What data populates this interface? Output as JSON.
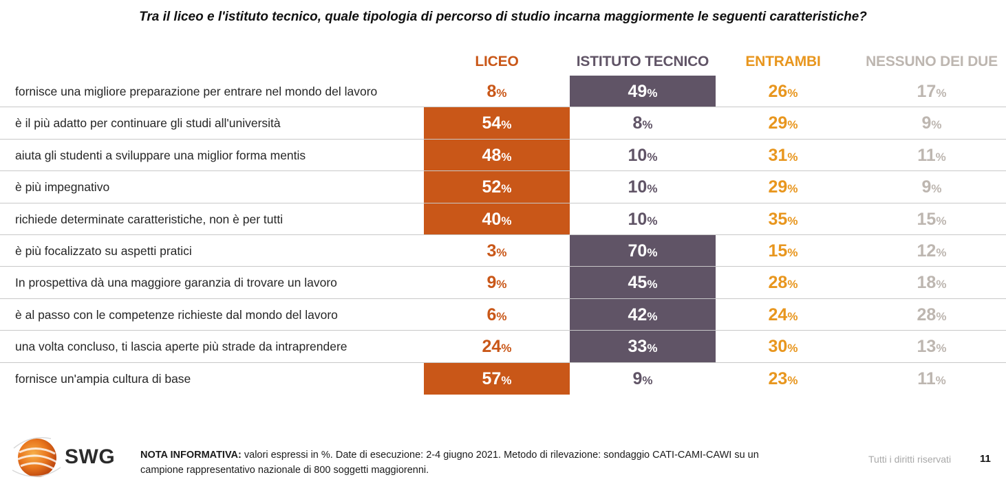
{
  "title": "Tra il liceo e l'istituto tecnico, quale tipologia di percorso di studio incarna maggiormente le seguenti caratteristiche?",
  "colors": {
    "liceo": "#c95718",
    "istituto": "#605466",
    "entrambi": "#e8961e",
    "nessuno": "#bdb6b0"
  },
  "chart_data": {
    "type": "table",
    "title": "Tra il liceo e l'istituto tecnico, quale tipologia di percorso di studio incarna maggiormente le seguenti caratteristiche?",
    "unit": "%",
    "columns": [
      "LICEO",
      "ISTITUTO TECNICO",
      "ENTRAMBI",
      "NESSUNO DEI DUE"
    ],
    "rows": [
      {
        "label": "fornisce una migliore preparazione per entrare nel mondo del lavoro",
        "values": [
          8,
          49,
          26,
          17
        ],
        "highlight": 1
      },
      {
        "label": "è il più adatto per continuare gli studi all'università",
        "values": [
          54,
          8,
          29,
          9
        ],
        "highlight": 0
      },
      {
        "label": "aiuta gli studenti a sviluppare una miglior forma mentis",
        "values": [
          48,
          10,
          31,
          11
        ],
        "highlight": 0
      },
      {
        "label": "è più impegnativo",
        "values": [
          52,
          10,
          29,
          9
        ],
        "highlight": 0
      },
      {
        "label": "richiede determinate caratteristiche, non è per tutti",
        "values": [
          40,
          10,
          35,
          15
        ],
        "highlight": 0
      },
      {
        "label": "è più focalizzato su aspetti pratici",
        "values": [
          3,
          70,
          15,
          12
        ],
        "highlight": 1
      },
      {
        "label": "In prospettiva dà una maggiore garanzia di trovare un lavoro",
        "values": [
          9,
          45,
          28,
          18
        ],
        "highlight": 1
      },
      {
        "label": "è al passo con le competenze richieste dal mondo del lavoro",
        "values": [
          6,
          42,
          24,
          28
        ],
        "highlight": 1
      },
      {
        "label": "una volta concluso, ti lascia aperte più strade da intraprendere",
        "values": [
          24,
          33,
          30,
          13
        ],
        "highlight": 1
      },
      {
        "label": "fornisce un'ampia cultura di base",
        "values": [
          57,
          9,
          23,
          11
        ],
        "highlight": 0
      }
    ]
  },
  "footer": {
    "note_label": "NOTA INFORMATIVA:",
    "note_text": " valori espressi in %. Date di esecuzione: 2-4 giugno 2021. Metodo di rilevazione: sondaggio CATI-CAMI-CAWI su un campione rappresentativo nazionale di 800 soggetti maggiorenni.",
    "rights": "Tutti i diritti riservati",
    "page_number": "11",
    "logo_text": "SWG",
    "logo_icon": "swg-globe-icon"
  }
}
